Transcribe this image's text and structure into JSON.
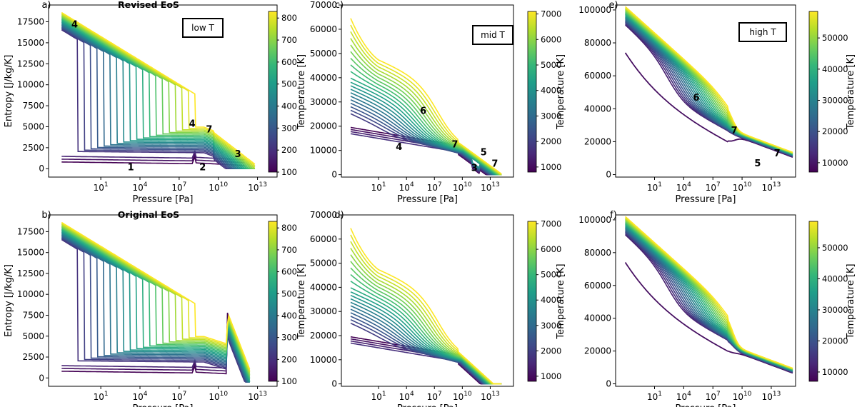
{
  "colormap": [
    "#440154",
    "#482878",
    "#3e4a89",
    "#31688e",
    "#26828e",
    "#1f9e89",
    "#35b779",
    "#6ece58",
    "#b5de2b",
    "#fde725"
  ],
  "chart_data": [
    {
      "id": "a",
      "type": "line",
      "panel_label": "a)",
      "title": "Revised EoS",
      "regime": "low T",
      "xlabel": "Pressure [Pa]",
      "ylabel": "Entropy [J/kg/K]",
      "cbar_label": "Temperature [K]",
      "x_scale": "log",
      "xlim_exp": [
        -3,
        14.5
      ],
      "ylim": [
        -1000,
        19500
      ],
      "x_ticks": [
        "10^1",
        "10^4",
        "10^7",
        "10^10",
        "10^13"
      ],
      "x_tick_exp": [
        1,
        4,
        7,
        10,
        13
      ],
      "y_ticks": [
        0,
        2500,
        5000,
        7500,
        10000,
        12500,
        15000,
        17500
      ],
      "y_tick_labels": [
        "0",
        "2500",
        "5000",
        "7500",
        "10000",
        "12500",
        "15000",
        "17500"
      ],
      "clim": [
        100,
        830
      ],
      "cbar_ticks": [
        100,
        200,
        300,
        400,
        500,
        600,
        700,
        800
      ],
      "cbar_tick_labels": [
        "100",
        "200",
        "300",
        "400",
        "500",
        "600",
        "700",
        "800"
      ],
      "annotations": [
        {
          "text": "4",
          "x": -1,
          "y": 16800
        },
        {
          "text": "4",
          "x": 8,
          "y": 5000
        },
        {
          "text": "7",
          "x": 9.3,
          "y": 4300
        },
        {
          "text": "3",
          "x": 11.5,
          "y": 1400
        },
        {
          "text": "1",
          "x": 3.3,
          "y": -200
        },
        {
          "text": "2",
          "x": 8.8,
          "y": -200
        }
      ]
    },
    {
      "id": "b",
      "type": "line",
      "panel_label": "b)",
      "title": "Original EoS",
      "regime": "",
      "xlabel": "Pressure [Pa]",
      "ylabel": "Entropy [J/kg/K]",
      "cbar_label": "Temperature [K]",
      "x_scale": "log",
      "xlim_exp": [
        -3,
        14.5
      ],
      "ylim": [
        -1000,
        19500
      ],
      "x_ticks": [
        "10^1",
        "10^4",
        "10^7",
        "10^10",
        "10^13"
      ],
      "x_tick_exp": [
        1,
        4,
        7,
        10,
        13
      ],
      "y_ticks": [
        0,
        2500,
        5000,
        7500,
        10000,
        12500,
        15000,
        17500
      ],
      "y_tick_labels": [
        "0",
        "2500",
        "5000",
        "7500",
        "10000",
        "12500",
        "15000",
        "17500"
      ],
      "clim": [
        100,
        830
      ],
      "cbar_ticks": [
        100,
        200,
        300,
        400,
        500,
        600,
        700,
        800
      ],
      "cbar_tick_labels": [
        "100",
        "200",
        "300",
        "400",
        "500",
        "600",
        "700",
        "800"
      ],
      "annotations": []
    },
    {
      "id": "c",
      "type": "line",
      "panel_label": "c)",
      "title": "",
      "regime": "mid T",
      "xlabel": "Pressure [Pa]",
      "ylabel": "",
      "cbar_label": "Temperature [K]",
      "x_scale": "log",
      "xlim_exp": [
        -3,
        15.5
      ],
      "ylim": [
        -1000,
        70000
      ],
      "x_ticks": [
        "10^1",
        "10^4",
        "10^7",
        "10^10",
        "10^13"
      ],
      "x_tick_exp": [
        1,
        4,
        7,
        10,
        13
      ],
      "y_ticks": [
        0,
        10000,
        20000,
        30000,
        40000,
        50000,
        60000,
        70000
      ],
      "y_tick_labels": [
        "0",
        "10000",
        "20000",
        "30000",
        "40000",
        "50000",
        "60000",
        "70000"
      ],
      "clim": [
        800,
        7100
      ],
      "cbar_ticks": [
        1000,
        2000,
        3000,
        4000,
        5000,
        6000,
        7000
      ],
      "cbar_tick_labels": [
        "1000",
        "2000",
        "3000",
        "4000",
        "5000",
        "6000",
        "7000"
      ],
      "annotations": [
        {
          "text": "6",
          "x": 5.8,
          "y": 25000
        },
        {
          "text": "4",
          "x": 3.2,
          "y": 10200
        },
        {
          "text": "7",
          "x": 9.2,
          "y": 11200
        },
        {
          "text": "5",
          "x": 12.3,
          "y": 8000
        },
        {
          "text": "7",
          "x": 13.5,
          "y": 3200
        },
        {
          "text": "3",
          "x": 11.3,
          "y": 1500
        }
      ]
    },
    {
      "id": "d",
      "type": "line",
      "panel_label": "d)",
      "title": "",
      "regime": "",
      "xlabel": "Pressure [Pa]",
      "ylabel": "",
      "cbar_label": "Temperature [K]",
      "x_scale": "log",
      "xlim_exp": [
        -3,
        15.5
      ],
      "ylim": [
        -1000,
        70000
      ],
      "x_ticks": [
        "10^1",
        "10^4",
        "10^7",
        "10^10",
        "10^13"
      ],
      "x_tick_exp": [
        1,
        4,
        7,
        10,
        13
      ],
      "y_ticks": [
        0,
        10000,
        20000,
        30000,
        40000,
        50000,
        60000,
        70000
      ],
      "y_tick_labels": [
        "0",
        "10000",
        "20000",
        "30000",
        "40000",
        "50000",
        "60000",
        "70000"
      ],
      "clim": [
        800,
        7100
      ],
      "cbar_ticks": [
        1000,
        2000,
        3000,
        4000,
        5000,
        6000,
        7000
      ],
      "cbar_tick_labels": [
        "1000",
        "2000",
        "3000",
        "4000",
        "5000",
        "6000",
        "7000"
      ],
      "annotations": []
    },
    {
      "id": "e",
      "type": "line",
      "panel_label": "e)",
      "title": "",
      "regime": "high T",
      "xlabel": "Pressure [Pa]",
      "ylabel": "",
      "cbar_label": "Temperature [K]",
      "x_scale": "log",
      "xlim_exp": [
        -3,
        15.5
      ],
      "ylim": [
        -1500,
        103000
      ],
      "x_ticks": [
        "10^1",
        "10^4",
        "10^7",
        "10^10",
        "10^13"
      ],
      "x_tick_exp": [
        1,
        4,
        7,
        10,
        13
      ],
      "y_ticks": [
        0,
        20000,
        40000,
        60000,
        80000,
        100000
      ],
      "y_tick_labels": [
        "0",
        "20000",
        "40000",
        "60000",
        "80000",
        "100000"
      ],
      "clim": [
        7000,
        58500
      ],
      "cbar_ticks": [
        10000,
        20000,
        30000,
        40000,
        50000
      ],
      "cbar_tick_labels": [
        "10000",
        "20000",
        "30000",
        "40000",
        "50000"
      ],
      "annotations": [
        {
          "text": "6",
          "x": 5.3,
          "y": 45000
        },
        {
          "text": "7",
          "x": 9.2,
          "y": 25000
        },
        {
          "text": "7",
          "x": 13.6,
          "y": 11000
        },
        {
          "text": "5",
          "x": 11.6,
          "y": 5000
        }
      ]
    },
    {
      "id": "f",
      "type": "line",
      "panel_label": "f)",
      "title": "",
      "regime": "",
      "xlabel": "Pressure [Pa]",
      "ylabel": "",
      "cbar_label": "Temperature [K]",
      "x_scale": "log",
      "xlim_exp": [
        -3,
        15.5
      ],
      "ylim": [
        -1500,
        103000
      ],
      "x_ticks": [
        "10^1",
        "10^4",
        "10^7",
        "10^10",
        "10^13"
      ],
      "x_tick_exp": [
        1,
        4,
        7,
        10,
        13
      ],
      "y_ticks": [
        0,
        20000,
        40000,
        60000,
        80000,
        100000
      ],
      "y_tick_labels": [
        "0",
        "20000",
        "40000",
        "60000",
        "80000",
        "100000"
      ],
      "clim": [
        7000,
        58500
      ],
      "cbar_ticks": [
        10000,
        20000,
        30000,
        40000,
        50000
      ],
      "cbar_tick_labels": [
        "10000",
        "20000",
        "30000",
        "40000",
        "50000"
      ],
      "annotations": []
    }
  ]
}
